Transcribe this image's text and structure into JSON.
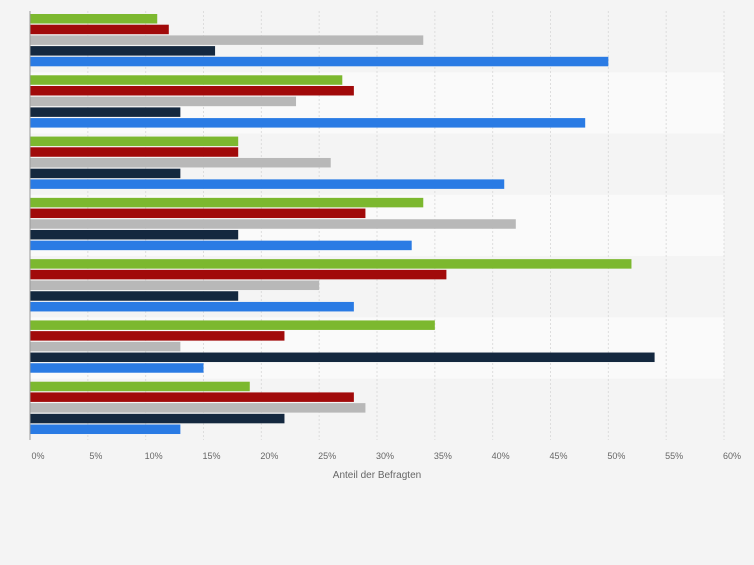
{
  "chart_data": {
    "type": "bar",
    "orientation": "horizontal",
    "categories": [
      "",
      "",
      "",
      "",
      "",
      "",
      ""
    ],
    "series": [
      {
        "color": "#7cb82f",
        "values": [
          11,
          27,
          18,
          34,
          52,
          35,
          19
        ]
      },
      {
        "color": "#a10a0a",
        "values": [
          12,
          28,
          18,
          29,
          36,
          22,
          28
        ]
      },
      {
        "color": "#b8b8b8",
        "values": [
          34,
          23,
          26,
          42,
          25,
          13,
          29
        ]
      },
      {
        "color": "#14283f",
        "values": [
          16,
          13,
          13,
          18,
          18,
          54,
          22
        ]
      },
      {
        "color": "#2a7be4",
        "values": [
          50,
          48,
          41,
          33,
          28,
          15,
          13
        ]
      }
    ],
    "xlim": [
      0,
      60
    ],
    "xticks": [
      "0%",
      "5%",
      "10%",
      "15%",
      "20%",
      "25%",
      "30%",
      "35%",
      "40%",
      "45%",
      "50%",
      "55%",
      "60%"
    ],
    "xlabel": "Anteil der Befragten",
    "ylabel": "",
    "grid": true,
    "legend": "none"
  }
}
